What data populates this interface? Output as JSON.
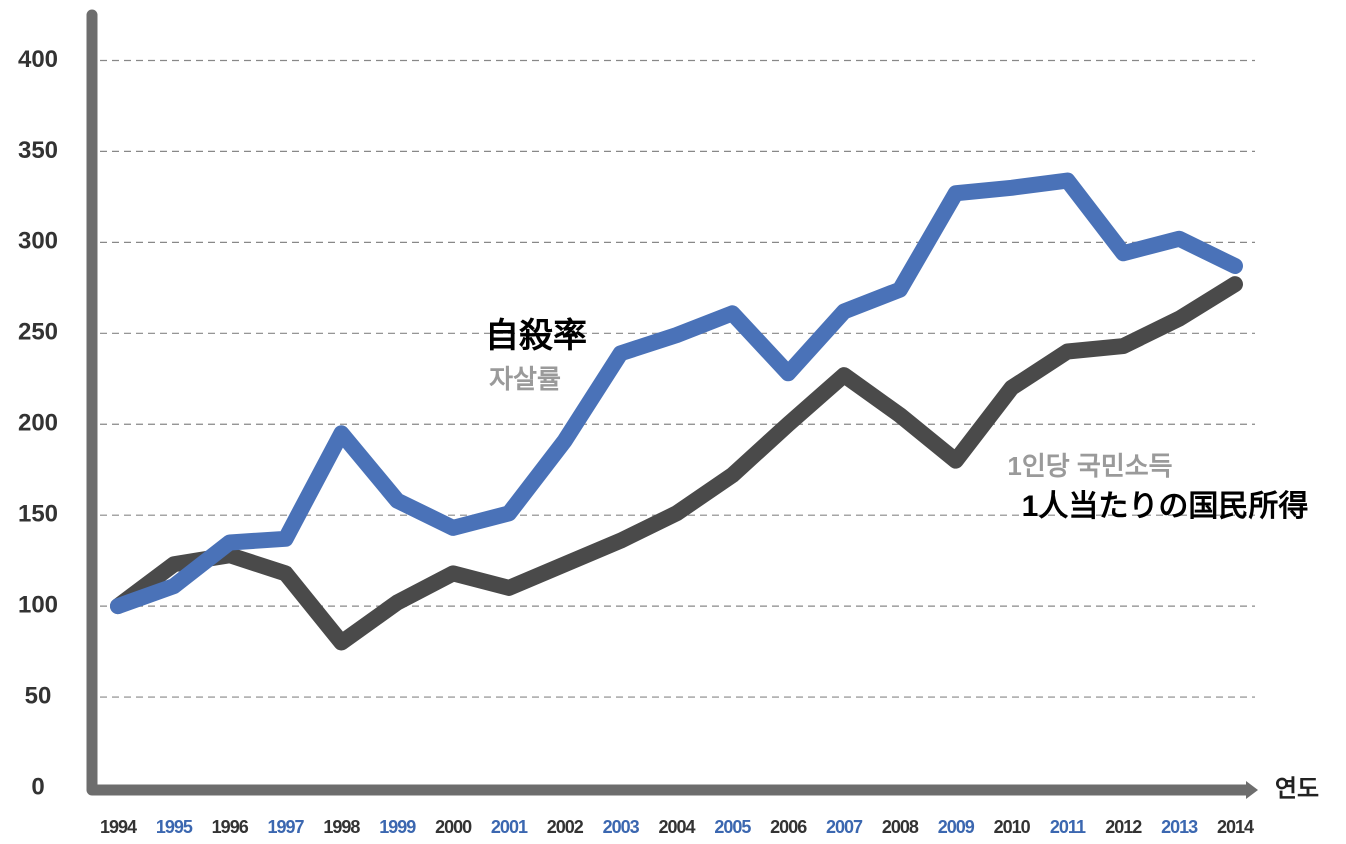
{
  "chart_data": {
    "type": "line",
    "categories": [
      "1994",
      "1995",
      "1996",
      "1997",
      "1998",
      "1999",
      "2000",
      "2001",
      "2002",
      "2003",
      "2004",
      "2005",
      "2006",
      "2007",
      "2008",
      "2009",
      "2010",
      "2011",
      "2012",
      "2013",
      "2014"
    ],
    "xlabel": "연도",
    "xtick_label_colors": [
      "#333333",
      "#3b67b0"
    ],
    "series": [
      {
        "name": "자살률",
        "color": "#4a72b8",
        "values": [
          100,
          111,
          135,
          137,
          195,
          158,
          143,
          151,
          191,
          239,
          249,
          261,
          228,
          262,
          274,
          327,
          330,
          334,
          294,
          302,
          287
        ]
      },
      {
        "name": "1인당 국민소득",
        "color": "#4a4a4a",
        "values": [
          100,
          123,
          128,
          118,
          80,
          102,
          118,
          110,
          123,
          136,
          151,
          172,
          200,
          227,
          205,
          180,
          220,
          240,
          243,
          258,
          277
        ]
      }
    ],
    "annotations": [
      "自殺率",
      "1人当たりの国民所得"
    ],
    "ylim": [
      0,
      425
    ],
    "yticks": [
      0,
      50,
      100,
      150,
      200,
      250,
      300,
      350,
      400
    ],
    "grid": true
  }
}
